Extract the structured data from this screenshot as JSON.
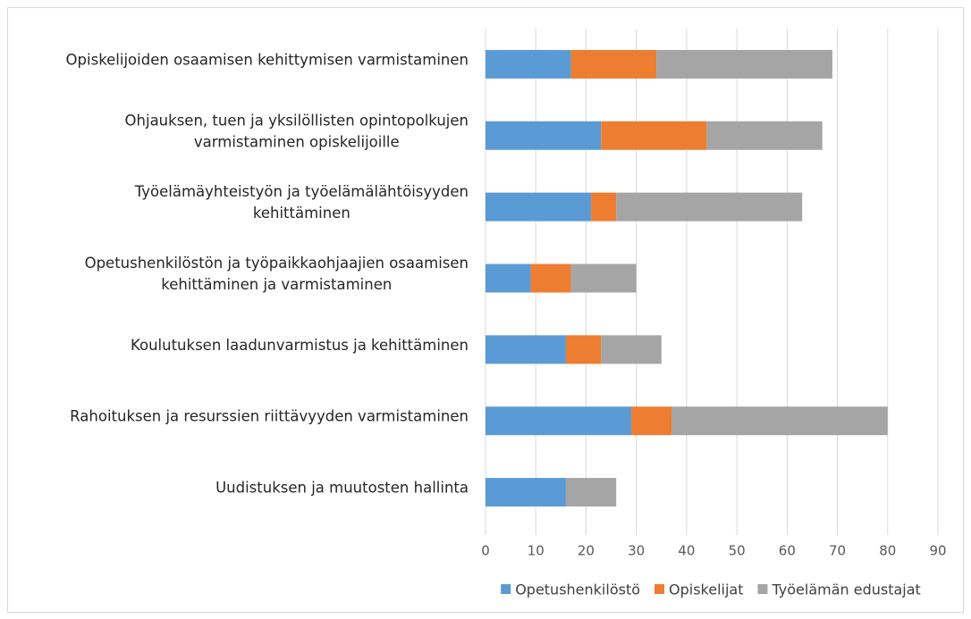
{
  "chart_data": {
    "type": "stacked_bar_horizontal",
    "categories": [
      [
        "Opiskelijoiden osaamisen kehittymisen varmistaminen"
      ],
      [
        "Ohjauksen, tuen ja yksilöllisten opintopolkujen",
        "varmistaminen opiskelijoille"
      ],
      [
        "Työelämäyhteistyön ja työelämälähtöisyyden",
        "kehittäminen"
      ],
      [
        "Opetushenkilöstön ja työpaikkaohjaajien osaamisen",
        "kehittäminen ja varmistaminen"
      ],
      [
        "Koulutuksen laadunvarmistus ja kehittäminen"
      ],
      [
        "Rahoituksen ja resurssien riittävyyden varmistaminen"
      ],
      [
        "Uudistuksen ja muutosten hallinta"
      ]
    ],
    "series": [
      {
        "name": "Opetushenkilöstö",
        "color": "#5b9bd5",
        "values": [
          17,
          23,
          21,
          9,
          16,
          29,
          16
        ]
      },
      {
        "name": "Opiskelijat",
        "color": "#ed7d31",
        "values": [
          17,
          21,
          5,
          8,
          7,
          8,
          0
        ]
      },
      {
        "name": "Työelämän edustajat",
        "color": "#a5a5a5",
        "values": [
          35,
          23,
          37,
          13,
          12,
          43,
          10
        ]
      }
    ],
    "xlim": [
      0,
      90
    ],
    "xticks": [
      0,
      10,
      20,
      30,
      40,
      50,
      60,
      70,
      80,
      90
    ],
    "grid": true,
    "legend": "bottom"
  }
}
